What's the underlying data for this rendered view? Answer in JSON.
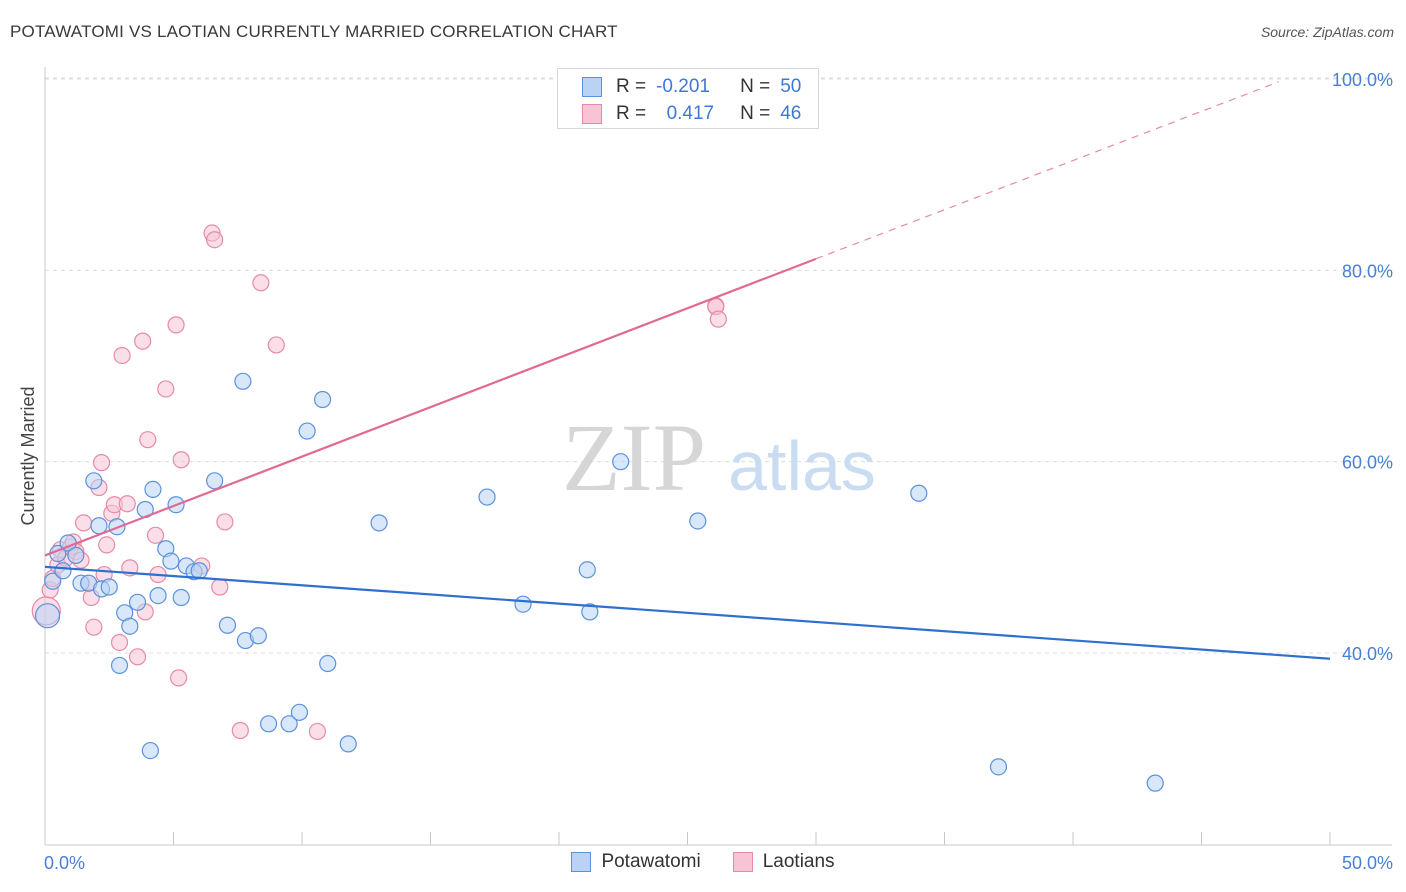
{
  "title": "POTAWATOMI VS LAOTIAN CURRENTLY MARRIED CORRELATION CHART",
  "source": "Source: ZipAtlas.com",
  "watermark": {
    "zip": "ZIP",
    "atlas": "atlas"
  },
  "legend": {
    "series1": {
      "r_label": "R =",
      "r_value": "-0.201",
      "n_label": "N =",
      "n_value": "50"
    },
    "series2": {
      "r_label": "R =",
      "r_value": "0.417",
      "n_label": "N =",
      "n_value": "46"
    }
  },
  "bottom_legend": {
    "series1": "Potawatomi",
    "series2": "Laotians"
  },
  "colors": {
    "blue_fill": "#b8d3f4",
    "blue_edge": "#5b91dd",
    "blue_line": "#2f6fd0",
    "pink_fill": "#f8c4d5",
    "pink_edge": "#e78aa7",
    "pink_line": "#e06a93",
    "grid": "#dcdcdc",
    "tick_text": "#4a7fd4"
  },
  "chart_data": {
    "type": "scatter",
    "title": "POTAWATOMI VS LAOTIAN CURRENTLY MARRIED CORRELATION CHART",
    "xlabel": "",
    "ylabel": "Currently Married",
    "xlim": [
      0,
      50
    ],
    "ylim": [
      20,
      102
    ],
    "x_tick_labels": [
      "0.0%",
      "50.0%"
    ],
    "y_ticks": [
      40,
      60,
      80,
      100
    ],
    "y_tick_labels": [
      "40.0%",
      "60.0%",
      "80.0%",
      "100.0%"
    ],
    "grid": true,
    "series": [
      {
        "name": "Potawatomi",
        "r": -0.201,
        "n": 50,
        "trend": {
          "x": [
            0,
            50
          ],
          "y": [
            49.0,
            39.4
          ],
          "dashed_extension": false
        },
        "points": [
          [
            0.1,
            43.9,
            12
          ],
          [
            0.3,
            47.5,
            8
          ],
          [
            0.5,
            50.4,
            8
          ],
          [
            0.7,
            48.6,
            8
          ],
          [
            0.9,
            51.5,
            8
          ],
          [
            1.2,
            50.2,
            8
          ],
          [
            1.4,
            47.3,
            8
          ],
          [
            1.7,
            47.3,
            8
          ],
          [
            1.9,
            58.0,
            8
          ],
          [
            2.1,
            53.3,
            8
          ],
          [
            2.2,
            46.7,
            8
          ],
          [
            2.5,
            46.9,
            8
          ],
          [
            2.8,
            53.2,
            8
          ],
          [
            2.9,
            38.7,
            8
          ],
          [
            3.1,
            44.2,
            8
          ],
          [
            3.3,
            42.8,
            8
          ],
          [
            3.6,
            45.3,
            8
          ],
          [
            3.9,
            55.0,
            8
          ],
          [
            4.1,
            29.8,
            8
          ],
          [
            4.2,
            57.1,
            8
          ],
          [
            4.4,
            46.0,
            8
          ],
          [
            4.7,
            50.9,
            8
          ],
          [
            4.9,
            49.6,
            8
          ],
          [
            5.1,
            55.5,
            8
          ],
          [
            5.3,
            45.8,
            8
          ],
          [
            5.5,
            49.1,
            8
          ],
          [
            5.8,
            48.5,
            8
          ],
          [
            6.0,
            48.6,
            8
          ],
          [
            6.6,
            58.0,
            8
          ],
          [
            7.1,
            42.9,
            8
          ],
          [
            7.8,
            41.3,
            8
          ],
          [
            7.7,
            68.4,
            8
          ],
          [
            8.3,
            41.8,
            8
          ],
          [
            8.7,
            32.6,
            8
          ],
          [
            9.5,
            32.6,
            8
          ],
          [
            9.9,
            33.8,
            8
          ],
          [
            10.2,
            63.2,
            8
          ],
          [
            10.8,
            66.5,
            8
          ],
          [
            11.0,
            38.9,
            8
          ],
          [
            11.8,
            30.5,
            8
          ],
          [
            13.0,
            53.6,
            8
          ],
          [
            17.2,
            56.3,
            8
          ],
          [
            18.6,
            45.1,
            8
          ],
          [
            21.1,
            48.7,
            8
          ],
          [
            21.2,
            44.3,
            8
          ],
          [
            22.4,
            60.0,
            8
          ],
          [
            25.4,
            53.8,
            8
          ],
          [
            34.0,
            56.7,
            8
          ],
          [
            37.1,
            28.1,
            8
          ],
          [
            43.2,
            26.4,
            8
          ]
        ]
      },
      {
        "name": "Laotians",
        "r": 0.417,
        "n": 46,
        "trend": {
          "x": [
            0,
            30
          ],
          "y": [
            50.2,
            81.2
          ],
          "dashed_extension": true,
          "dashed_x": [
            30,
            48
          ],
          "dashed_y": [
            81.2,
            99.7
          ]
        },
        "points": [
          [
            0.05,
            44.4,
            14
          ],
          [
            0.2,
            46.6,
            8
          ],
          [
            0.3,
            47.8,
            8
          ],
          [
            0.5,
            49.2,
            8
          ],
          [
            0.6,
            50.8,
            8
          ],
          [
            0.8,
            49.9,
            8
          ],
          [
            1.0,
            51.1,
            8
          ],
          [
            1.1,
            51.6,
            8
          ],
          [
            1.2,
            50.6,
            8
          ],
          [
            1.4,
            49.7,
            8
          ],
          [
            1.5,
            53.6,
            8
          ],
          [
            1.7,
            47.3,
            8
          ],
          [
            1.8,
            45.8,
            8
          ],
          [
            1.9,
            42.7,
            8
          ],
          [
            2.1,
            57.3,
            8
          ],
          [
            2.2,
            59.9,
            8
          ],
          [
            2.3,
            48.2,
            8
          ],
          [
            2.4,
            51.3,
            8
          ],
          [
            2.6,
            54.6,
            8
          ],
          [
            2.7,
            55.5,
            8
          ],
          [
            2.9,
            41.1,
            8
          ],
          [
            3.0,
            71.1,
            8
          ],
          [
            3.2,
            55.6,
            8
          ],
          [
            3.3,
            48.9,
            8
          ],
          [
            3.6,
            39.6,
            8
          ],
          [
            3.9,
            44.3,
            8
          ],
          [
            3.8,
            72.6,
            8
          ],
          [
            4.0,
            62.3,
            8
          ],
          [
            4.3,
            52.3,
            8
          ],
          [
            4.4,
            48.2,
            8
          ],
          [
            4.7,
            67.6,
            8
          ],
          [
            5.1,
            74.3,
            8
          ],
          [
            5.2,
            37.4,
            8
          ],
          [
            5.3,
            60.2,
            8
          ],
          [
            6.1,
            49.1,
            8
          ],
          [
            6.5,
            83.9,
            8
          ],
          [
            6.6,
            83.2,
            8
          ],
          [
            6.8,
            46.9,
            8
          ],
          [
            7.0,
            53.7,
            8
          ],
          [
            7.6,
            31.9,
            8
          ],
          [
            8.4,
            78.7,
            8
          ],
          [
            9.0,
            72.2,
            8
          ],
          [
            10.6,
            31.8,
            8
          ],
          [
            26.1,
            76.3,
            8
          ],
          [
            26.1,
            76.2,
            8
          ],
          [
            26.2,
            74.9,
            8
          ]
        ]
      }
    ]
  }
}
